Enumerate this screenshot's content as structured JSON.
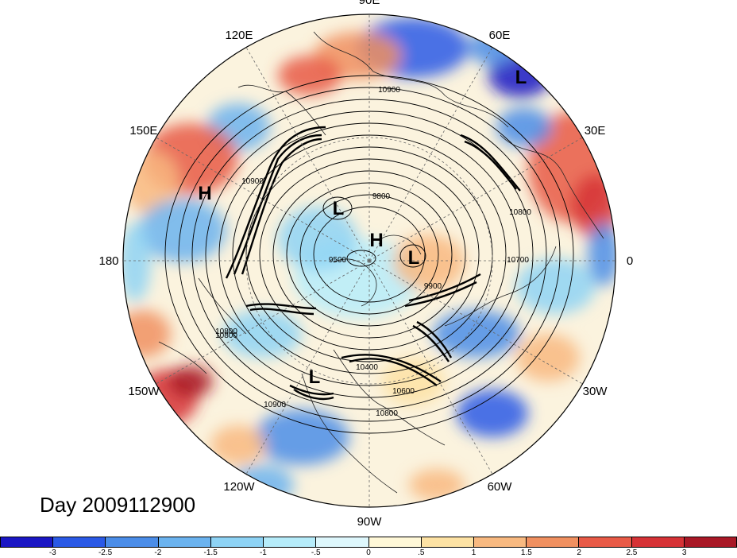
{
  "chart_data": {
    "type": "heatmap",
    "projection": "north-polar-stereographic",
    "title": "",
    "day_label": "Day 2009112900",
    "longitude_labels": [
      "90E",
      "60E",
      "30E",
      "0",
      "30W",
      "60W",
      "90W",
      "120W",
      "150W",
      "180",
      "150E",
      "120E"
    ],
    "contour_labels": [
      "10900",
      "9800",
      "9500",
      "9900",
      "10700",
      "10800",
      "10800",
      "10900",
      "10400",
      "10600",
      "10800",
      "10900",
      "10800"
    ],
    "pressure_centers": [
      {
        "type": "L"
      },
      {
        "type": "H"
      },
      {
        "type": "L"
      },
      {
        "type": "H"
      },
      {
        "type": "L"
      },
      {
        "type": "L"
      }
    ],
    "colorbar": {
      "colors": [
        "#1a16c4",
        "#2a59e6",
        "#4b8de8",
        "#6bb3ef",
        "#8ed3f5",
        "#b6ecfa",
        "#def7fc",
        "#fff8d8",
        "#fde2a4",
        "#f8b980",
        "#f09060",
        "#e85a47",
        "#d63236",
        "#a91826"
      ],
      "tick_labels": [
        "-3",
        "-2.5",
        "-2",
        "-1.5",
        "-1",
        "-.5",
        "0",
        ".5",
        "1",
        "1.5",
        "2",
        "2.5",
        "3"
      ]
    }
  }
}
